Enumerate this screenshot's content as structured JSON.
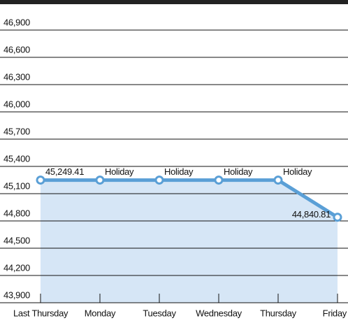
{
  "chart_data": {
    "type": "line",
    "categories": [
      "Last Thursday",
      "Monday",
      "Tuesday",
      "Wednesday",
      "Thursday",
      "Friday"
    ],
    "values": [
      45249.41,
      45249.41,
      45249.41,
      45249.41,
      45249.41,
      44840.81
    ],
    "value_labels": [
      "45,249.41",
      "Holiday",
      "Holiday",
      "Holiday",
      "Holiday",
      "44,840.81"
    ],
    "color": "#5a9fd6",
    "area_color": "#d6e6f6",
    "ylim": [
      43900,
      46900
    ],
    "yticks": [
      {
        "value": 43900,
        "label": "43,900"
      },
      {
        "value": 44200,
        "label": "44,200"
      },
      {
        "value": 44500,
        "label": "44,500"
      },
      {
        "value": 44800,
        "label": "44,800"
      },
      {
        "value": 45100,
        "label": "45,100"
      },
      {
        "value": 45400,
        "label": "45,400"
      },
      {
        "value": 45700,
        "label": "45,700"
      },
      {
        "value": 46000,
        "label": "46,000"
      },
      {
        "value": 46300,
        "label": "46,300"
      },
      {
        "value": 46600,
        "label": "46,600"
      },
      {
        "value": 46900,
        "label": "46,900"
      }
    ],
    "grid": true
  }
}
